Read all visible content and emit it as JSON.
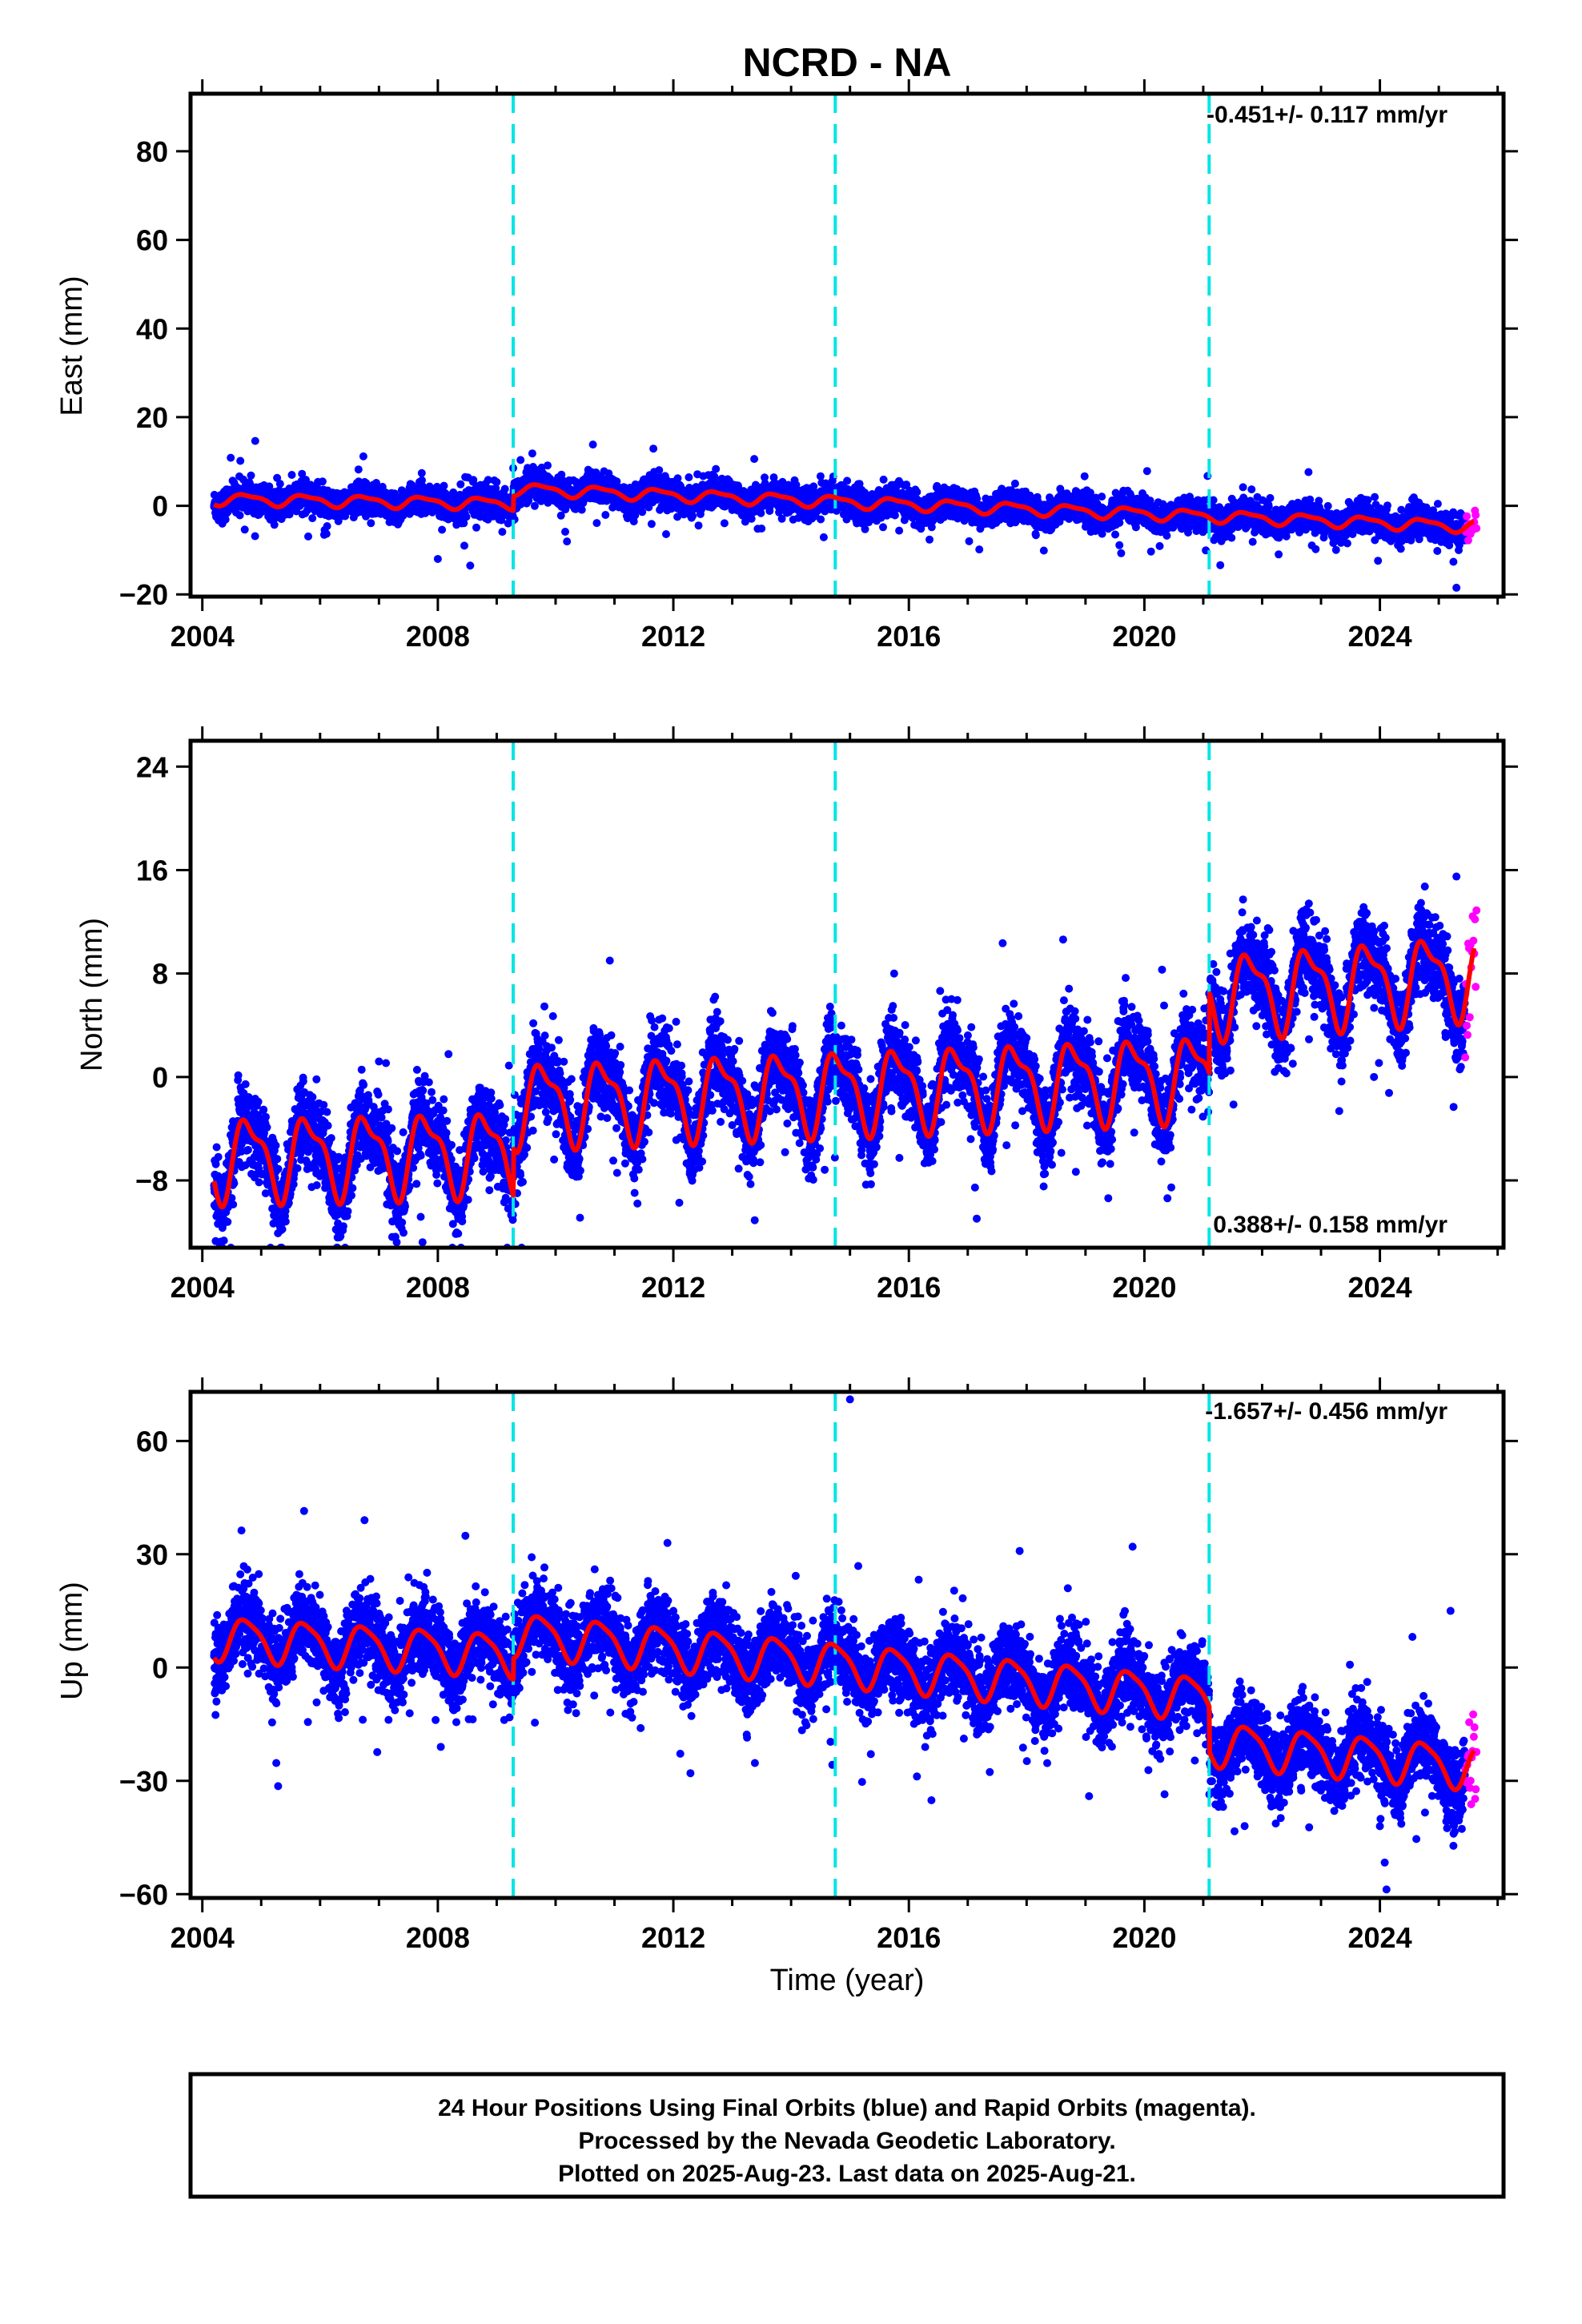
{
  "title": "NCRD - NA",
  "xlabel": "Time (year)",
  "footer": {
    "line1": "24 Hour Positions Using Final Orbits (blue) and Rapid Orbits (magenta).",
    "line2": "Processed by the Nevada Geodetic Laboratory.",
    "line3": "Plotted on 2025-Aug-23. Last data on 2025-Aug-21."
  },
  "colors": {
    "final_orbits": "#0000ff",
    "rapid_orbits": "#ff00ff",
    "model_fit": "#ff0000",
    "equipment_change": "#00e5e5",
    "frame": "#000000"
  },
  "chart_data": [
    {
      "type": "scatter",
      "component": "east",
      "ylabel": "East (mm)",
      "rate_text": "-0.451+/- 0.117 mm/yr",
      "rate_position": "top-right",
      "xlim": [
        2003.8,
        2026.1
      ],
      "ylim": [
        -20.5,
        93
      ],
      "x_ticks": [
        2004,
        2008,
        2012,
        2016,
        2020,
        2024
      ],
      "x_tick_labels": [
        "2004",
        "2008",
        "2012",
        "2016",
        "2020",
        "2024"
      ],
      "y_ticks": [
        -20,
        0,
        20,
        40,
        60,
        80
      ],
      "y_tick_labels": [
        "−20",
        "0",
        "20",
        "40",
        "60",
        "80"
      ],
      "grid": false,
      "offset_epochs": [
        2009.28,
        2014.75,
        2021.1
      ],
      "model": {
        "start": 2004.2,
        "end": 2025.6,
        "segments": [
          {
            "start": 2004.2,
            "end": 2009.28,
            "value_at_start": 1.5,
            "rate": -0.2
          },
          {
            "start": 2009.28,
            "end": 2025.6,
            "value_at_start": 3.8,
            "rate": -0.52
          }
        ],
        "annual_amplitude": 1.2,
        "semiannual_amplitude": 0.4,
        "phase": 0.5
      },
      "scatter": {
        "final_sigma": 1.6,
        "final_spread": 3.0,
        "rapid_start": 2025.45,
        "rapid_end": 2025.64,
        "rapid_count": 16
      },
      "outliers": [
        {
          "x": 2008.0,
          "y": -12
        },
        {
          "x": 2008.55,
          "y": -13.5
        },
        {
          "x": 2008.45,
          "y": -9
        },
        {
          "x": 2025.3,
          "y": -18.5
        },
        {
          "x": 2009.28,
          "y": 8.5
        }
      ]
    },
    {
      "type": "scatter",
      "component": "north",
      "ylabel": "North (mm)",
      "rate_text": "0.388+/- 0.158 mm/yr",
      "rate_position": "bottom-right",
      "xlim": [
        2003.8,
        2026.1
      ],
      "ylim": [
        -13.2,
        26
      ],
      "x_ticks": [
        2004,
        2008,
        2012,
        2016,
        2020,
        2024
      ],
      "x_tick_labels": [
        "2004",
        "2008",
        "2012",
        "2016",
        "2020",
        "2024"
      ],
      "y_ticks": [
        -8,
        0,
        8,
        16,
        24
      ],
      "y_tick_labels": [
        "−8",
        "0",
        "8",
        "16",
        "24"
      ],
      "grid": false,
      "offset_epochs": [
        2009.28,
        2014.75,
        2021.1
      ],
      "model": {
        "start": 2004.2,
        "end": 2025.6,
        "segments": [
          {
            "start": 2004.2,
            "end": 2009.28,
            "value_at_start": -6.2,
            "rate": 0.1
          },
          {
            "start": 2009.28,
            "end": 2021.1,
            "value_at_start": -2.0,
            "rate": 0.18
          },
          {
            "start": 2021.1,
            "end": 2025.6,
            "value_at_start": 6.4,
            "rate": 0.35
          }
        ],
        "annual_amplitude": 2.9,
        "semiannual_amplitude": 1.1,
        "phase": 0.55
      },
      "scatter": {
        "final_sigma": 1.5,
        "final_spread": 3.0,
        "rapid_start": 2025.45,
        "rapid_end": 2025.64,
        "rapid_count": 16
      },
      "outliers": [
        {
          "x": 2015.75,
          "y": 8.0
        },
        {
          "x": 2020.3,
          "y": 8.3
        },
        {
          "x": 2025.3,
          "y": 15.5
        },
        {
          "x": 2023.9,
          "y": 0.0
        },
        {
          "x": 2007.0,
          "y": 1.2
        }
      ]
    },
    {
      "type": "scatter",
      "component": "up",
      "ylabel": "Up (mm)",
      "rate_text": "-1.657+/- 0.456 mm/yr",
      "rate_position": "top-right",
      "xlim": [
        2003.8,
        2026.1
      ],
      "ylim": [
        -61,
        73
      ],
      "x_ticks": [
        2004,
        2008,
        2012,
        2016,
        2020,
        2024
      ],
      "x_tick_labels": [
        "2004",
        "2008",
        "2012",
        "2016",
        "2020",
        "2024"
      ],
      "y_ticks": [
        -60,
        -30,
        0,
        30,
        60
      ],
      "y_tick_labels": [
        "−60",
        "−30",
        "0",
        "30",
        "60"
      ],
      "grid": false,
      "offset_epochs": [
        2009.28,
        2014.75,
        2021.1
      ],
      "model": {
        "start": 2004.2,
        "end": 2025.6,
        "segments": [
          {
            "start": 2004.2,
            "end": 2009.28,
            "value_at_start": 8.0,
            "rate": -0.9
          },
          {
            "start": 2009.28,
            "end": 2021.1,
            "value_at_start": 9.0,
            "rate": -1.45
          },
          {
            "start": 2021.1,
            "end": 2025.6,
            "value_at_start": -20.0,
            "rate": -1.4
          }
        ],
        "annual_amplitude": 5.5,
        "semiannual_amplitude": 1.2,
        "phase": 0.5
      },
      "scatter": {
        "final_sigma": 5.0,
        "final_spread": 3.0,
        "rapid_start": 2025.45,
        "rapid_end": 2025.64,
        "rapid_count": 18
      },
      "outliers": [
        {
          "x": 2015.0,
          "y": 71
        },
        {
          "x": 2019.8,
          "y": 32
        },
        {
          "x": 2011.9,
          "y": 33
        },
        {
          "x": 2018.7,
          "y": 21
        },
        {
          "x": 2025.2,
          "y": 15
        },
        {
          "x": 2008.05,
          "y": -21
        },
        {
          "x": 2024.0,
          "y": -42
        }
      ]
    }
  ]
}
